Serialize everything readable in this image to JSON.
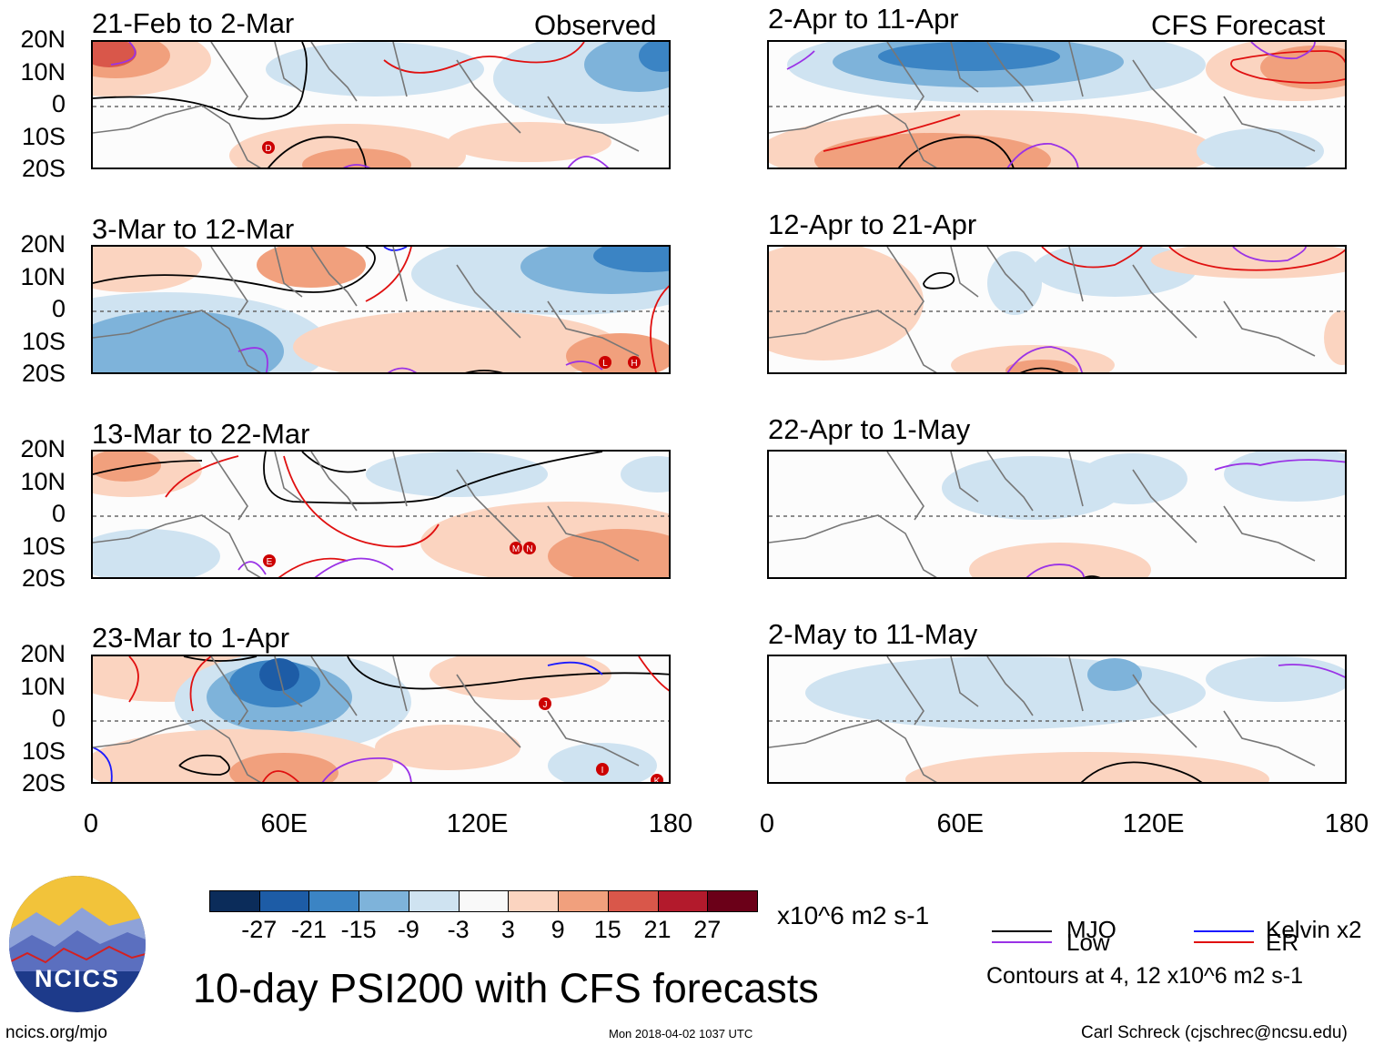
{
  "chart_data": {
    "type": "heatmap",
    "title": "10-day PSI200 with CFS forecasts",
    "variable": "PSI200",
    "units": "x10^6 m2 s-1",
    "x_ticks": [
      "0",
      "60E",
      "120E",
      "180"
    ],
    "y_ticks": [
      "20N",
      "10N",
      "0",
      "10S",
      "20S"
    ],
    "xlim": [
      0,
      180
    ],
    "ylim": [
      -20,
      20
    ],
    "left_column_label": "Observed",
    "right_column_label": "CFS Forecast",
    "panels": [
      {
        "period": "21-Feb to 2-Mar",
        "column": "observed"
      },
      {
        "period": "3-Mar to 12-Mar",
        "column": "observed"
      },
      {
        "period": "13-Mar to 22-Mar",
        "column": "observed"
      },
      {
        "period": "23-Mar to 1-Apr",
        "column": "observed"
      },
      {
        "period": "2-Apr to 11-Apr",
        "column": "forecast"
      },
      {
        "period": "12-Apr to 21-Apr",
        "column": "forecast"
      },
      {
        "period": "22-Apr to 1-May",
        "column": "forecast"
      },
      {
        "period": "2-May to 11-May",
        "column": "forecast"
      }
    ],
    "colorbar": {
      "labels": [
        "-27",
        "-21",
        "-15",
        "-9",
        "-3",
        "3",
        "9",
        "15",
        "21",
        "27"
      ],
      "colors": [
        "#0b2c5a",
        "#1d5ca6",
        "#3b84c4",
        "#7eb3da",
        "#cfe3f1",
        "#f9f9f9",
        "#fbd4c0",
        "#f1a07d",
        "#d9574a",
        "#b31a2c",
        "#6b0018"
      ]
    },
    "contour_legend": [
      {
        "label": "MJO",
        "color": "#000000"
      },
      {
        "label": "Kelvin x2",
        "color": "#1a1aff"
      },
      {
        "label": "Low",
        "color": "#9a32e6"
      },
      {
        "label": "ER",
        "color": "#e01010"
      }
    ],
    "contour_note": "Contours at 4, 12 x10^6 m2 s-1"
  },
  "footer": {
    "logo_text": "NCICS",
    "url": "ncics.org/mjo",
    "timestamp": "Mon 2018-04-02 1037 UTC",
    "author": "Carl Schreck (cjschrec@ncsu.edu)"
  }
}
